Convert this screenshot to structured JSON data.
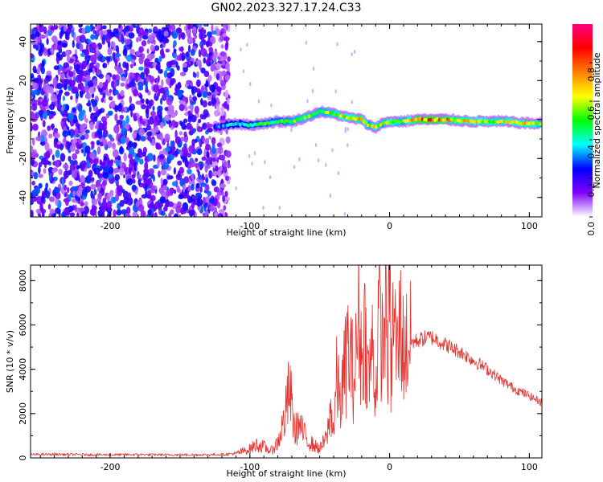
{
  "title": "GN02.2023.327.17.24.C33",
  "chart_data": [
    {
      "type": "heatmap",
      "name": "spectrogram",
      "xlabel": "Height of straight line (km)",
      "ylabel": "Frequency (Hz)",
      "xlim": [
        -257,
        109
      ],
      "ylim": [
        -50,
        49
      ],
      "x_ticks": [
        -200,
        -100,
        0,
        100
      ],
      "x_tick_labels": [
        "-200",
        "-100",
        "0",
        "100"
      ],
      "y_ticks": [
        -40,
        -20,
        0,
        20,
        40
      ],
      "y_tick_labels": [
        "-40",
        "-20",
        "0",
        "20",
        "40"
      ],
      "colorbar": {
        "label": "Normalized spectral amplitude",
        "range": [
          0,
          1
        ],
        "ticks": [
          0.0,
          0.2,
          0.4,
          0.6,
          0.8
        ],
        "tick_labels": [
          "0.0",
          "0.2",
          "0.4",
          "0.6",
          "0.8"
        ],
        "colors": [
          "#ffffff",
          "#8000ff",
          "#0000ff",
          "#00ffff",
          "#00ff00",
          "#ffff00",
          "#ff8000",
          "#ff0000",
          "#ff0080"
        ]
      },
      "noise_region_x": [
        -257,
        -115
      ],
      "signal_track": {
        "x": [
          -125,
          -110,
          -100,
          -90,
          -80,
          -70,
          -60,
          -50,
          -40,
          -30,
          -20,
          -15,
          -10,
          -5,
          0,
          10,
          20,
          30,
          40,
          60,
          80,
          100,
          109
        ],
        "y": [
          -4,
          -2,
          -3,
          -2,
          -1,
          -1,
          1,
          4,
          3,
          1,
          0,
          -3,
          -4,
          -2,
          -1,
          -1,
          0,
          0,
          0,
          -1,
          -1,
          -2,
          -2
        ],
        "amplitude": [
          0.3,
          0.45,
          0.5,
          0.55,
          0.55,
          0.6,
          0.65,
          0.6,
          0.65,
          0.7,
          0.8,
          0.6,
          0.7,
          0.6,
          0.7,
          0.6,
          0.85,
          0.9,
          0.8,
          0.7,
          0.65,
          0.75,
          0.6
        ]
      }
    },
    {
      "type": "line",
      "name": "snr",
      "xlabel": "Height of straight line (km)",
      "ylabel": "SNR (10 * v/v)",
      "xlim": [
        -257,
        109
      ],
      "ylim": [
        0,
        8700
      ],
      "x_ticks": [
        -200,
        -100,
        0,
        100
      ],
      "x_tick_labels": [
        "-200",
        "-100",
        "0",
        "100"
      ],
      "y_ticks": [
        0,
        2000,
        4000,
        6000,
        8000
      ],
      "y_tick_labels": [
        "0",
        "2000",
        "4000",
        "6000",
        "8000"
      ],
      "color": "#e8302c",
      "series": [
        {
          "x": [
            -257,
            -240,
            -220,
            -200,
            -180,
            -160,
            -140,
            -120,
            -110,
            -100,
            -95,
            -90,
            -85,
            -80,
            -75,
            -72,
            -70,
            -68,
            -65,
            -60,
            -55,
            -50,
            -45,
            -42,
            -40,
            -38,
            -35,
            -30,
            -25,
            -22,
            -20,
            -18,
            -15,
            -12,
            -10,
            -8,
            -5,
            -3,
            -1,
            0,
            1,
            3,
            5,
            8,
            10,
            12,
            15,
            20,
            25,
            30,
            35,
            40,
            50,
            60,
            70,
            80,
            90,
            100,
            109
          ],
          "y": [
            150,
            160,
            150,
            140,
            150,
            140,
            140,
            150,
            200,
            400,
            600,
            500,
            300,
            700,
            1800,
            3000,
            2400,
            1200,
            1500,
            900,
            600,
            400,
            900,
            2200,
            1200,
            3500,
            2500,
            5000,
            3500,
            6800,
            4200,
            6000,
            3500,
            5200,
            2500,
            6500,
            5000,
            7000,
            4500,
            8600,
            3500,
            6800,
            4500,
            6200,
            4800,
            5100,
            5200,
            5300,
            5400,
            5450,
            5300,
            5100,
            4800,
            4400,
            4000,
            3500,
            3100,
            2800,
            2500
          ]
        }
      ]
    }
  ]
}
